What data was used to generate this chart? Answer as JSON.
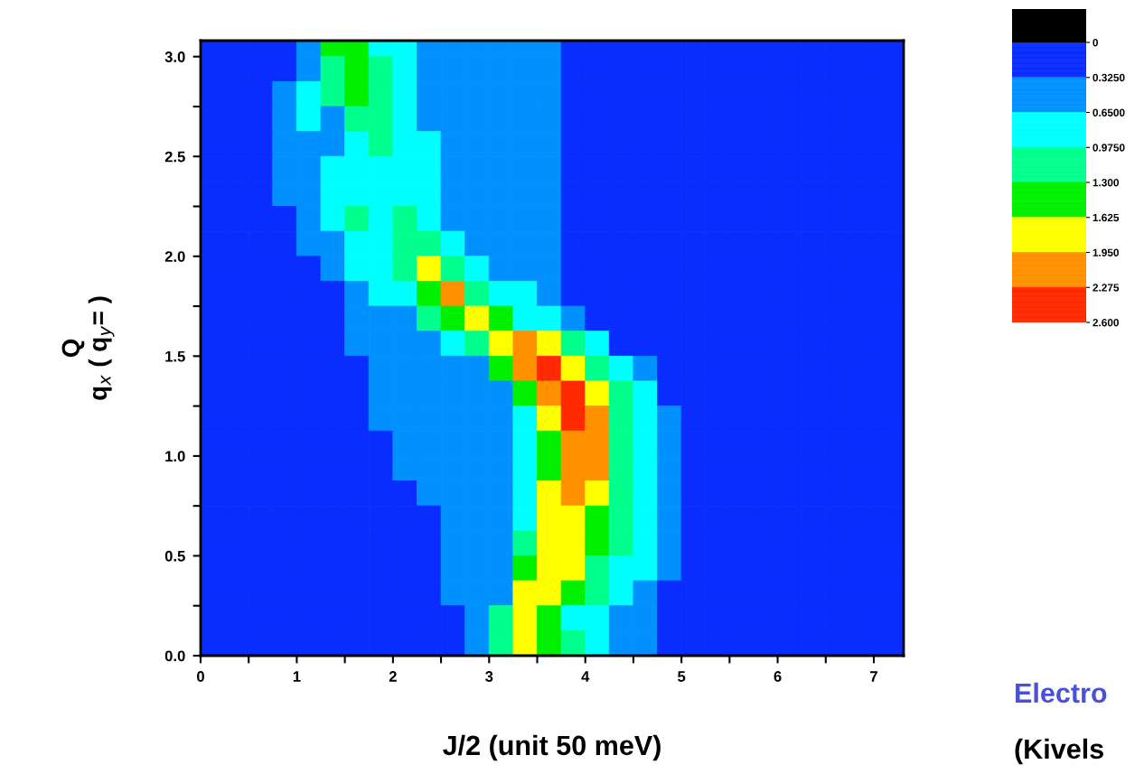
{
  "chart_data": {
    "type": "heatmap",
    "xlabel": "J/2 (unit 50 meV)",
    "ylabel": "Q\nq$_{x}$ ( q$_{y}$= )",
    "x": [
      0.125,
      0.375,
      0.625,
      0.875,
      1.125,
      1.375,
      1.625,
      1.875,
      2.125,
      2.375,
      2.625,
      2.875,
      3.125,
      3.375,
      3.625,
      3.875,
      4.125,
      4.375,
      4.625,
      4.875,
      5.125,
      5.375,
      5.625,
      5.875,
      6.125,
      6.375,
      6.625,
      6.875,
      7.125,
      7.25
    ],
    "y": [
      3.0625,
      2.9375,
      2.8125,
      2.6875,
      2.5625,
      2.4375,
      2.3125,
      2.1875,
      2.0625,
      1.9375,
      1.8125,
      1.6875,
      1.5625,
      1.4375,
      1.3125,
      1.1875,
      1.0625,
      0.9375,
      0.8125,
      0.6875,
      0.5625,
      0.4375,
      0.3125,
      0.1875,
      0.0625
    ],
    "cells": [
      [
        0.16,
        0.16,
        0.16,
        0.16,
        0.49,
        1.46,
        1.46,
        0.81,
        0.81,
        0.49,
        0.49,
        0.49,
        0.49,
        0.49,
        0.49,
        0.16,
        0.16,
        0.16,
        0.16,
        0.16,
        0.16,
        0.16,
        0.16,
        0.16,
        0.16,
        0.16,
        0.16,
        0.16,
        0.16,
        0.16
      ],
      [
        0.16,
        0.16,
        0.16,
        0.16,
        0.49,
        1.14,
        1.46,
        1.14,
        0.81,
        0.49,
        0.49,
        0.49,
        0.49,
        0.49,
        0.49,
        0.16,
        0.16,
        0.16,
        0.16,
        0.16,
        0.16,
        0.16,
        0.16,
        0.16,
        0.16,
        0.16,
        0.16,
        0.16,
        0.16,
        0.16
      ],
      [
        0.16,
        0.16,
        0.16,
        0.49,
        0.81,
        1.14,
        1.46,
        1.14,
        0.81,
        0.49,
        0.49,
        0.49,
        0.49,
        0.49,
        0.49,
        0.16,
        0.16,
        0.16,
        0.16,
        0.16,
        0.16,
        0.16,
        0.16,
        0.16,
        0.16,
        0.16,
        0.16,
        0.16,
        0.16,
        0.16
      ],
      [
        0.16,
        0.16,
        0.16,
        0.49,
        0.81,
        0.49,
        1.14,
        1.14,
        0.81,
        0.49,
        0.49,
        0.49,
        0.49,
        0.49,
        0.49,
        0.16,
        0.16,
        0.16,
        0.16,
        0.16,
        0.16,
        0.16,
        0.16,
        0.16,
        0.16,
        0.16,
        0.16,
        0.16,
        0.16,
        0.16
      ],
      [
        0.16,
        0.16,
        0.16,
        0.49,
        0.49,
        0.49,
        0.81,
        1.14,
        0.81,
        0.81,
        0.49,
        0.49,
        0.49,
        0.49,
        0.49,
        0.16,
        0.16,
        0.16,
        0.16,
        0.16,
        0.16,
        0.16,
        0.16,
        0.16,
        0.16,
        0.16,
        0.16,
        0.16,
        0.16,
        0.16
      ],
      [
        0.16,
        0.16,
        0.16,
        0.49,
        0.49,
        0.81,
        0.81,
        0.81,
        0.81,
        0.81,
        0.49,
        0.49,
        0.49,
        0.49,
        0.49,
        0.16,
        0.16,
        0.16,
        0.16,
        0.16,
        0.16,
        0.16,
        0.16,
        0.16,
        0.16,
        0.16,
        0.16,
        0.16,
        0.16,
        0.16
      ],
      [
        0.16,
        0.16,
        0.16,
        0.49,
        0.49,
        0.81,
        0.81,
        0.81,
        0.81,
        0.81,
        0.49,
        0.49,
        0.49,
        0.49,
        0.49,
        0.16,
        0.16,
        0.16,
        0.16,
        0.16,
        0.16,
        0.16,
        0.16,
        0.16,
        0.16,
        0.16,
        0.16,
        0.16,
        0.16,
        0.16
      ],
      [
        0.16,
        0.16,
        0.16,
        0.16,
        0.49,
        0.81,
        1.14,
        0.81,
        1.14,
        0.81,
        0.49,
        0.49,
        0.49,
        0.49,
        0.49,
        0.16,
        0.16,
        0.16,
        0.16,
        0.16,
        0.16,
        0.16,
        0.16,
        0.16,
        0.16,
        0.16,
        0.16,
        0.16,
        0.16,
        0.16
      ],
      [
        0.16,
        0.16,
        0.16,
        0.16,
        0.49,
        0.49,
        0.81,
        0.81,
        1.14,
        1.14,
        0.81,
        0.49,
        0.49,
        0.49,
        0.49,
        0.16,
        0.16,
        0.16,
        0.16,
        0.16,
        0.16,
        0.16,
        0.16,
        0.16,
        0.16,
        0.16,
        0.16,
        0.16,
        0.16,
        0.16
      ],
      [
        0.16,
        0.16,
        0.16,
        0.16,
        0.16,
        0.49,
        0.81,
        0.81,
        1.14,
        1.79,
        1.14,
        0.81,
        0.49,
        0.49,
        0.49,
        0.16,
        0.16,
        0.16,
        0.16,
        0.16,
        0.16,
        0.16,
        0.16,
        0.16,
        0.16,
        0.16,
        0.16,
        0.16,
        0.16,
        0.16
      ],
      [
        0.16,
        0.16,
        0.16,
        0.16,
        0.16,
        0.16,
        0.49,
        0.81,
        0.81,
        1.46,
        2.11,
        1.14,
        0.81,
        0.81,
        0.49,
        0.16,
        0.16,
        0.16,
        0.16,
        0.16,
        0.16,
        0.16,
        0.16,
        0.16,
        0.16,
        0.16,
        0.16,
        0.16,
        0.16,
        0.16
      ],
      [
        0.16,
        0.16,
        0.16,
        0.16,
        0.16,
        0.16,
        0.49,
        0.49,
        0.49,
        1.14,
        1.46,
        1.79,
        1.46,
        0.81,
        0.81,
        0.49,
        0.16,
        0.16,
        0.16,
        0.16,
        0.16,
        0.16,
        0.16,
        0.16,
        0.16,
        0.16,
        0.16,
        0.16,
        0.16,
        0.16
      ],
      [
        0.16,
        0.16,
        0.16,
        0.16,
        0.16,
        0.16,
        0.49,
        0.49,
        0.49,
        0.49,
        0.81,
        1.14,
        1.79,
        2.11,
        1.79,
        1.14,
        0.81,
        0.16,
        0.16,
        0.16,
        0.16,
        0.16,
        0.16,
        0.16,
        0.16,
        0.16,
        0.16,
        0.16,
        0.16,
        0.16
      ],
      [
        0.16,
        0.16,
        0.16,
        0.16,
        0.16,
        0.16,
        0.16,
        0.49,
        0.49,
        0.49,
        0.49,
        0.49,
        1.46,
        2.11,
        2.44,
        1.79,
        1.14,
        0.81,
        0.49,
        0.16,
        0.16,
        0.16,
        0.16,
        0.16,
        0.16,
        0.16,
        0.16,
        0.16,
        0.16,
        0.16
      ],
      [
        0.16,
        0.16,
        0.16,
        0.16,
        0.16,
        0.16,
        0.16,
        0.49,
        0.49,
        0.49,
        0.49,
        0.49,
        0.49,
        1.46,
        2.11,
        2.44,
        1.79,
        1.14,
        0.81,
        0.16,
        0.16,
        0.16,
        0.16,
        0.16,
        0.16,
        0.16,
        0.16,
        0.16,
        0.16,
        0.16
      ],
      [
        0.16,
        0.16,
        0.16,
        0.16,
        0.16,
        0.16,
        0.16,
        0.49,
        0.49,
        0.49,
        0.49,
        0.49,
        0.49,
        0.81,
        1.79,
        2.44,
        2.11,
        1.14,
        0.81,
        0.49,
        0.16,
        0.16,
        0.16,
        0.16,
        0.16,
        0.16,
        0.16,
        0.16,
        0.16,
        0.16
      ],
      [
        0.16,
        0.16,
        0.16,
        0.16,
        0.16,
        0.16,
        0.16,
        0.16,
        0.49,
        0.49,
        0.49,
        0.49,
        0.49,
        0.81,
        1.46,
        2.11,
        2.11,
        1.14,
        0.81,
        0.49,
        0.16,
        0.16,
        0.16,
        0.16,
        0.16,
        0.16,
        0.16,
        0.16,
        0.16,
        0.16
      ],
      [
        0.16,
        0.16,
        0.16,
        0.16,
        0.16,
        0.16,
        0.16,
        0.16,
        0.49,
        0.49,
        0.49,
        0.49,
        0.49,
        0.81,
        1.46,
        2.11,
        2.11,
        1.14,
        0.81,
        0.49,
        0.16,
        0.16,
        0.16,
        0.16,
        0.16,
        0.16,
        0.16,
        0.16,
        0.16,
        0.16
      ],
      [
        0.16,
        0.16,
        0.16,
        0.16,
        0.16,
        0.16,
        0.16,
        0.16,
        0.16,
        0.49,
        0.49,
        0.49,
        0.49,
        0.81,
        1.79,
        2.11,
        1.79,
        1.14,
        0.81,
        0.49,
        0.16,
        0.16,
        0.16,
        0.16,
        0.16,
        0.16,
        0.16,
        0.16,
        0.16,
        0.16
      ],
      [
        0.16,
        0.16,
        0.16,
        0.16,
        0.16,
        0.16,
        0.16,
        0.16,
        0.16,
        0.16,
        0.49,
        0.49,
        0.49,
        0.81,
        1.79,
        1.79,
        1.46,
        1.14,
        0.81,
        0.49,
        0.16,
        0.16,
        0.16,
        0.16,
        0.16,
        0.16,
        0.16,
        0.16,
        0.16,
        0.16
      ],
      [
        0.16,
        0.16,
        0.16,
        0.16,
        0.16,
        0.16,
        0.16,
        0.16,
        0.16,
        0.16,
        0.49,
        0.49,
        0.49,
        1.14,
        1.79,
        1.79,
        1.46,
        1.14,
        0.81,
        0.49,
        0.16,
        0.16,
        0.16,
        0.16,
        0.16,
        0.16,
        0.16,
        0.16,
        0.16,
        0.16
      ],
      [
        0.16,
        0.16,
        0.16,
        0.16,
        0.16,
        0.16,
        0.16,
        0.16,
        0.16,
        0.16,
        0.49,
        0.49,
        0.49,
        1.46,
        1.79,
        1.79,
        1.14,
        0.81,
        0.81,
        0.49,
        0.16,
        0.16,
        0.16,
        0.16,
        0.16,
        0.16,
        0.16,
        0.16,
        0.16,
        0.16
      ],
      [
        0.16,
        0.16,
        0.16,
        0.16,
        0.16,
        0.16,
        0.16,
        0.16,
        0.16,
        0.16,
        0.49,
        0.49,
        0.49,
        1.79,
        1.79,
        1.46,
        1.14,
        0.81,
        0.49,
        0.16,
        0.16,
        0.16,
        0.16,
        0.16,
        0.16,
        0.16,
        0.16,
        0.16,
        0.16,
        0.16
      ],
      [
        0.16,
        0.16,
        0.16,
        0.16,
        0.16,
        0.16,
        0.16,
        0.16,
        0.16,
        0.16,
        0.16,
        0.49,
        1.14,
        1.79,
        1.46,
        0.81,
        0.81,
        0.49,
        0.49,
        0.16,
        0.16,
        0.16,
        0.16,
        0.16,
        0.16,
        0.16,
        0.16,
        0.16,
        0.16,
        0.16
      ],
      [
        0.16,
        0.16,
        0.16,
        0.16,
        0.16,
        0.16,
        0.16,
        0.16,
        0.16,
        0.16,
        0.16,
        0.49,
        1.14,
        1.79,
        1.46,
        1.14,
        0.81,
        0.49,
        0.49,
        0.16,
        0.16,
        0.16,
        0.16,
        0.16,
        0.16,
        0.16,
        0.16,
        0.16,
        0.16,
        0.16
      ]
    ],
    "colors": [
      "#000000",
      "#0a2dff",
      "#0091ff",
      "#00ffff",
      "#00ff8c",
      "#00f000",
      "#ffff00",
      "#ff9100",
      "#ff2a00"
    ],
    "clim": [
      2.6,
      0
    ],
    "cticks": [
      {
        "value": 0,
        "label": "0"
      },
      {
        "value": 0.325,
        "label": "0.3250"
      },
      {
        "value": 0.65,
        "label": "0.6500"
      },
      {
        "value": 0.975,
        "label": "0.9750"
      },
      {
        "value": 1.3,
        "label": "1.300"
      },
      {
        "value": 1.625,
        "label": "1.625"
      },
      {
        "value": 1.95,
        "label": "1.950"
      },
      {
        "value": 2.275,
        "label": "2.275"
      },
      {
        "value": 2.6,
        "label": "2.600"
      }
    ],
    "xlim": [
      0,
      7.31
    ],
    "ylim": [
      0,
      3.08
    ],
    "xticks": [
      0,
      {
        "value": 0.5,
        "label": null
      },
      1,
      {
        "value": 1.5,
        "label": null
      },
      2,
      {
        "value": 2.5,
        "label": null
      },
      3,
      {
        "value": 3.5,
        "label": null
      },
      4,
      {
        "value": 4.5,
        "label": null
      },
      5,
      {
        "value": 5.5,
        "label": null
      },
      6,
      {
        "value": 6.5,
        "label": null
      },
      7
    ],
    "yticks": [
      {
        "value": 0,
        "label": "0.0"
      },
      {
        "value": 0.25,
        "label": null
      },
      {
        "value": 0.5,
        "label": "0.5"
      },
      {
        "value": 0.75,
        "label": null
      },
      {
        "value": 1,
        "label": "1.0"
      },
      {
        "value": 1.25,
        "label": null
      },
      {
        "value": 1.5,
        "label": "1.5"
      },
      {
        "value": 1.75,
        "label": null
      },
      {
        "value": 2,
        "label": "2.0"
      },
      {
        "value": 2.25,
        "label": null
      },
      {
        "value": 2.5,
        "label": "2.5"
      },
      {
        "value": 2.75,
        "label": null
      },
      {
        "value": 3,
        "label": "3.0"
      }
    ],
    "annotations": [
      "Electro",
      "(Kivels"
    ]
  }
}
